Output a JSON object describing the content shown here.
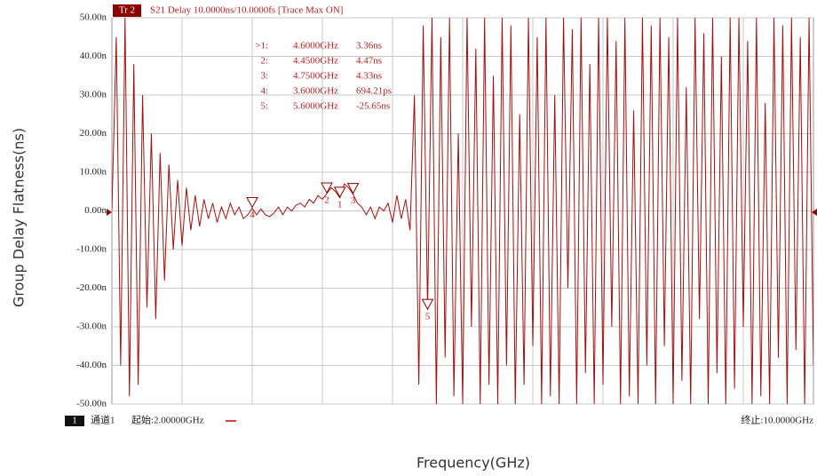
{
  "chart_data": {
    "type": "line",
    "trace_id": "Tr 2",
    "title": "S21 Delay 10.0000ns/10.0000fs [Trace Max ON]",
    "y_label": "Group Delay Flatness(ns)",
    "x_label": "Frequency(GHz)",
    "channel_id": "1",
    "channel_name": "通道1",
    "start_label": "起始:2.00000GHz",
    "stop_label": "终止:10.0000GHz",
    "color": "#a01010",
    "grid": true,
    "xlim": [
      2,
      10
    ],
    "ylim": [
      -50,
      50
    ],
    "yticks": [
      {
        "value": 50,
        "label": "50.00n"
      },
      {
        "value": 40,
        "label": "40.00n"
      },
      {
        "value": 30,
        "label": "30.00n"
      },
      {
        "value": 20,
        "label": "20.00n"
      },
      {
        "value": 10,
        "label": "10.00n"
      },
      {
        "value": 0,
        "label": "0.00n"
      },
      {
        "value": -10,
        "label": "-10.00n"
      },
      {
        "value": -20,
        "label": "-20.00n"
      },
      {
        "value": -30,
        "label": "-30.00n"
      },
      {
        "value": -40,
        "label": "-40.00n"
      },
      {
        "value": -50,
        "label": "-50.00n"
      }
    ],
    "markers": [
      {
        "id": ">1:",
        "number": "1",
        "frequency": "4.6000GHz",
        "reading": "3.36ns",
        "x": 4.6,
        "y": 3.36
      },
      {
        "id": "2:",
        "number": "2",
        "frequency": "4.4500GHz",
        "reading": "4.47ns",
        "x": 4.45,
        "y": 4.47
      },
      {
        "id": "3:",
        "number": "3",
        "frequency": "4.7500GHz",
        "reading": "4.33ns",
        "x": 4.75,
        "y": 4.33
      },
      {
        "id": "4:",
        "number": "4",
        "frequency": "3.6000GHz",
        "reading": "694.21ps",
        "x": 3.6,
        "y": 0.69421
      },
      {
        "id": "5:",
        "number": "5",
        "frequency": "5.6000GHz",
        "reading": "-25.65ns",
        "x": 5.6,
        "y": -25.65
      }
    ],
    "x": [
      2,
      2.05,
      2.1,
      2.15,
      2.2,
      2.25,
      2.3,
      2.35,
      2.4,
      2.45,
      2.5,
      2.55,
      2.6,
      2.65,
      2.7,
      2.75,
      2.8,
      2.85,
      2.9,
      2.95,
      3,
      3.05,
      3.1,
      3.15,
      3.2,
      3.25,
      3.3,
      3.35,
      3.4,
      3.45,
      3.5,
      3.55,
      3.6,
      3.65,
      3.7,
      3.75,
      3.8,
      3.85,
      3.9,
      3.95,
      4,
      4.05,
      4.1,
      4.15,
      4.2,
      4.25,
      4.3,
      4.35,
      4.4,
      4.45,
      4.5,
      4.55,
      4.6,
      4.65,
      4.7,
      4.75,
      4.8,
      4.85,
      4.9,
      4.95,
      5,
      5.05,
      5.1,
      5.15,
      5.2,
      5.25,
      5.3,
      5.35,
      5.4,
      5.45,
      5.5,
      5.55,
      5.6,
      5.65,
      5.7,
      5.75,
      5.8,
      5.85,
      5.9,
      5.95,
      6,
      6.05,
      6.1,
      6.15,
      6.2,
      6.25,
      6.3,
      6.35,
      6.4,
      6.45,
      6.5,
      6.55,
      6.6,
      6.65,
      6.7,
      6.75,
      6.8,
      6.85,
      6.9,
      6.95,
      7,
      7.05,
      7.1,
      7.15,
      7.2,
      7.25,
      7.3,
      7.35,
      7.4,
      7.45,
      7.5,
      7.55,
      7.6,
      7.65,
      7.7,
      7.75,
      7.8,
      7.85,
      7.9,
      7.95,
      8,
      8.05,
      8.1,
      8.15,
      8.2,
      8.25,
      8.3,
      8.35,
      8.4,
      8.45,
      8.5,
      8.55,
      8.6,
      8.65,
      8.7,
      8.75,
      8.8,
      8.85,
      8.9,
      8.95,
      9,
      9.05,
      9.1,
      9.15,
      9.2,
      9.25,
      9.3,
      9.35,
      9.4,
      9.45,
      9.5,
      9.55,
      9.6,
      9.65,
      9.7,
      9.75,
      9.8,
      9.85,
      9.9,
      9.95,
      10
    ],
    "values": [
      0,
      45,
      -40,
      50,
      -48,
      38,
      -45,
      30,
      -25,
      20,
      -28,
      15,
      -18,
      12,
      -10,
      8,
      -9,
      6,
      -5,
      4,
      -4,
      3,
      -2,
      2,
      -3,
      1,
      -2,
      2,
      -1,
      1,
      -2,
      -1,
      0.69,
      -1,
      0.5,
      -1,
      -1.5,
      -0.5,
      1,
      -1,
      1,
      0,
      1.5,
      2,
      1,
      3,
      2,
      4,
      3,
      4.47,
      6,
      5,
      3.36,
      7,
      6,
      4.33,
      2,
      1,
      -1,
      1,
      -2,
      1,
      0,
      2,
      -3,
      4,
      -2,
      3,
      -5,
      30,
      -45,
      48,
      -25.65,
      50,
      -50,
      45,
      -38,
      50,
      -48,
      20,
      -50,
      50,
      -30,
      42,
      -50,
      50,
      -45,
      35,
      -50,
      50,
      -40,
      48,
      -50,
      25,
      -45,
      50,
      -35,
      45,
      -50,
      50,
      -48,
      30,
      -50,
      50,
      -20,
      47,
      -50,
      50,
      -42,
      38,
      -50,
      50,
      -45,
      50,
      -30,
      44,
      -50,
      50,
      -48,
      26,
      -50,
      50,
      -40,
      48,
      -50,
      50,
      -35,
      45,
      -50,
      50,
      -44,
      32,
      -50,
      50,
      -28,
      46,
      -50,
      50,
      -42,
      40,
      -50,
      50,
      -46,
      50,
      -30,
      44,
      -50,
      50,
      -48,
      28,
      -50,
      50,
      -38,
      48,
      -50,
      50,
      -36,
      45,
      -50,
      50,
      -40
    ]
  }
}
